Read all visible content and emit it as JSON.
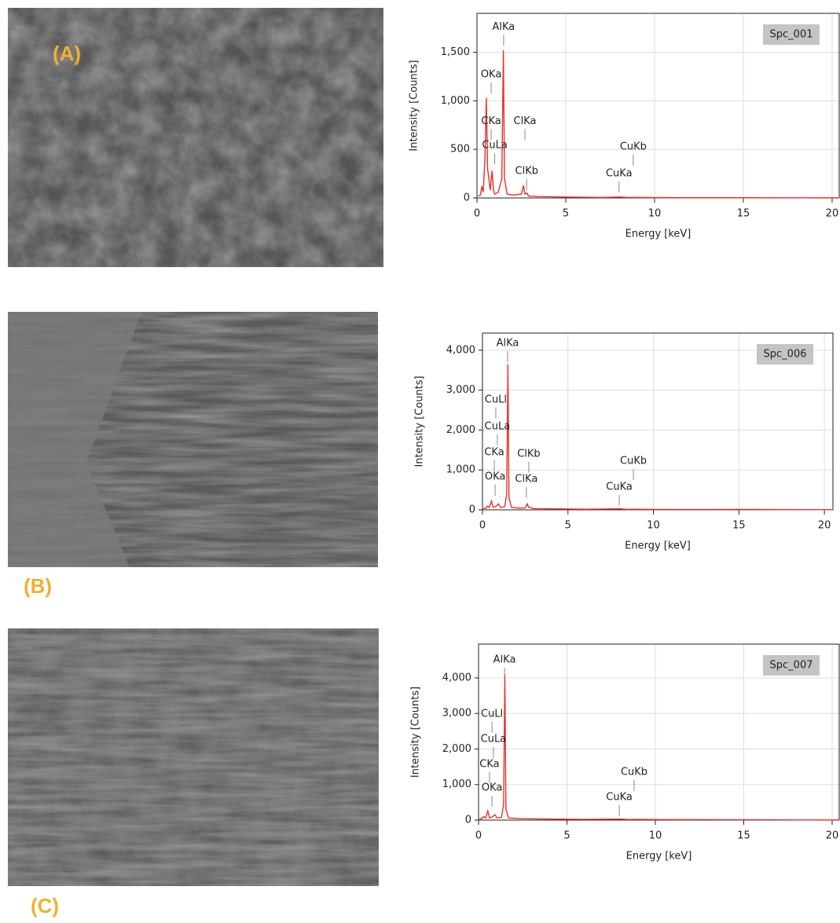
{
  "image_labels": [
    "(A)",
    "(B)",
    "(C)"
  ],
  "chart_data": [
    {
      "type": "line",
      "xlabel": "Energy [keV]",
      "ylabel": "Intensity [Counts]",
      "xlim": [
        0,
        20.4
      ],
      "ylim": [
        0,
        1900
      ],
      "xticks": [
        0,
        5,
        10,
        15,
        20
      ],
      "yticks": [
        0,
        500,
        {
          "value": 1000,
          "label": "1,000"
        },
        {
          "value": 1500,
          "label": "1,500"
        }
      ],
      "grid": true,
      "series": [
        {
          "name": "Spc_001",
          "color": "#e8302a",
          "x": [
            0.05,
            0.2,
            0.277,
            0.35,
            0.45,
            0.525,
            0.6,
            0.75,
            0.85,
            0.93,
            1.0,
            1.2,
            1.4,
            1.487,
            1.55,
            1.7,
            2.0,
            2.5,
            2.62,
            2.7,
            2.82,
            2.9,
            3.5,
            5,
            7,
            8.04,
            8.5,
            8.9,
            10,
            12,
            15,
            20.4
          ],
          "values": [
            20,
            30,
            120,
            60,
            400,
            1030,
            300,
            80,
            280,
            80,
            40,
            60,
            200,
            1520,
            200,
            40,
            30,
            40,
            130,
            40,
            50,
            20,
            15,
            10,
            5,
            10,
            5,
            5,
            3,
            2,
            2,
            1
          ]
        }
      ],
      "annotations": [
        {
          "text": "AlKa",
          "x": 1.5,
          "y": 1760
        },
        {
          "text": "OKa",
          "x": 0.8,
          "y": 1270
        },
        {
          "text": "CKa",
          "x": 0.8,
          "y": 790
        },
        {
          "text": "CuLa",
          "x": 1.0,
          "y": 540
        },
        {
          "text": "ClKa",
          "x": 2.7,
          "y": 790
        },
        {
          "text": "ClKb",
          "x": 2.8,
          "y": 275
        },
        {
          "text": "CuKb",
          "x": 8.8,
          "y": 527
        },
        {
          "text": "CuKa",
          "x": 8.0,
          "y": 250
        }
      ]
    },
    {
      "type": "line",
      "xlabel": "Energy [keV]",
      "ylabel": "Intensity [Counts]",
      "xlim": [
        0,
        20.5
      ],
      "ylim": [
        0,
        4430
      ],
      "xticks": [
        0,
        5,
        10,
        15,
        20
      ],
      "yticks": [
        0,
        {
          "value": 1000,
          "label": "1,000"
        },
        {
          "value": 2000,
          "label": "2,000"
        },
        {
          "value": 3000,
          "label": "3,000"
        },
        {
          "value": 4000,
          "label": "4,000"
        }
      ],
      "grid": true,
      "series": [
        {
          "name": "Spc_006",
          "color": "#e8302a",
          "x": [
            0.05,
            0.2,
            0.277,
            0.4,
            0.525,
            0.62,
            0.8,
            0.93,
            1.05,
            1.3,
            1.42,
            1.487,
            1.55,
            1.7,
            2.2,
            2.5,
            2.62,
            2.7,
            2.82,
            2.95,
            4,
            6,
            8.04,
            8.5,
            8.9,
            10,
            12,
            15,
            17,
            20.5
          ],
          "values": [
            30,
            40,
            90,
            60,
            220,
            60,
            90,
            150,
            60,
            80,
            400,
            3650,
            300,
            60,
            40,
            50,
            150,
            60,
            60,
            30,
            25,
            15,
            25,
            10,
            15,
            10,
            8,
            10,
            5,
            3
          ]
        }
      ],
      "annotations": [
        {
          "text": "AlKa",
          "x": 1.47,
          "y": 4170
        },
        {
          "text": "CuLl",
          "x": 0.78,
          "y": 2760
        },
        {
          "text": "CuLa",
          "x": 0.87,
          "y": 2090
        },
        {
          "text": "CKa",
          "x": 0.69,
          "y": 1440
        },
        {
          "text": "OKa",
          "x": 0.74,
          "y": 830
        },
        {
          "text": "ClKb",
          "x": 2.71,
          "y": 1400
        },
        {
          "text": "ClKa",
          "x": 2.57,
          "y": 770
        },
        {
          "text": "CuKb",
          "x": 8.83,
          "y": 1220
        },
        {
          "text": "CuKa",
          "x": 8.0,
          "y": 570
        }
      ]
    },
    {
      "type": "line",
      "xlabel": "Energy [keV]",
      "ylabel": "Intensity [Counts]",
      "xlim": [
        0,
        20.4
      ],
      "ylim": [
        0,
        4950
      ],
      "xticks": [
        0,
        5,
        10,
        15,
        20
      ],
      "yticks": [
        0,
        {
          "value": 1000,
          "label": "1,000"
        },
        {
          "value": 2000,
          "label": "2,000"
        },
        {
          "value": 3000,
          "label": "3,000"
        },
        {
          "value": 4000,
          "label": "4,000"
        }
      ],
      "grid": true,
      "series": [
        {
          "name": "Spc_007",
          "color": "#e8302a",
          "x": [
            0.05,
            0.2,
            0.277,
            0.4,
            0.525,
            0.62,
            0.8,
            0.93,
            1.05,
            1.3,
            1.42,
            1.487,
            1.55,
            1.7,
            2.5,
            4,
            6,
            8.04,
            8.5,
            8.9,
            10,
            12,
            15,
            17,
            20.4
          ],
          "values": [
            30,
            40,
            100,
            60,
            260,
            60,
            100,
            150,
            60,
            80,
            450,
            4100,
            300,
            60,
            40,
            30,
            20,
            30,
            15,
            20,
            15,
            12,
            10,
            6,
            3
          ]
        }
      ],
      "annotations": [
        {
          "text": "AlKa",
          "x": 1.47,
          "y": 4510
        },
        {
          "text": "CuLl",
          "x": 0.76,
          "y": 2985
        },
        {
          "text": "CuLa",
          "x": 0.84,
          "y": 2280
        },
        {
          "text": "CKa",
          "x": 0.62,
          "y": 1570
        },
        {
          "text": "OKa",
          "x": 0.76,
          "y": 906
        },
        {
          "text": "CuKb",
          "x": 8.8,
          "y": 1350
        },
        {
          "text": "CuKa",
          "x": 7.96,
          "y": 640
        }
      ]
    }
  ]
}
